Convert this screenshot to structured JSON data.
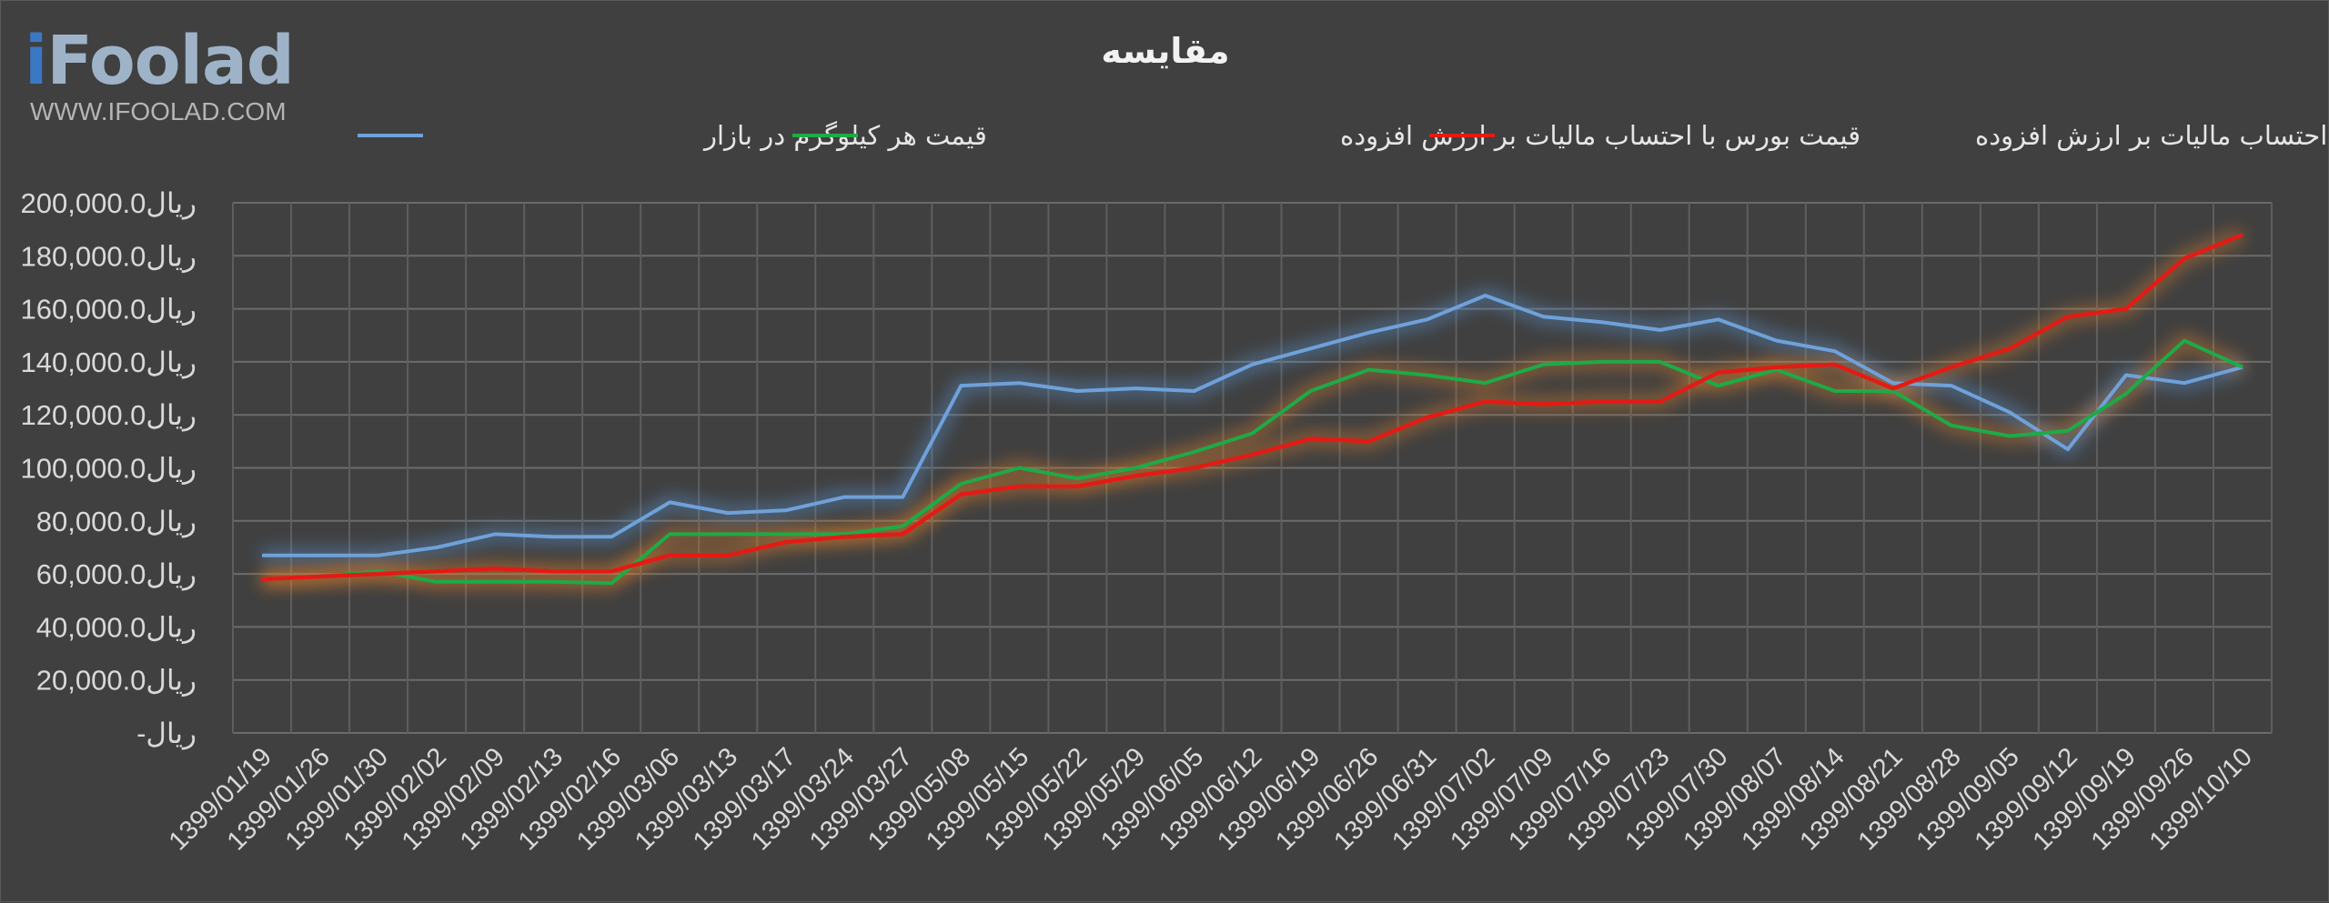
{
  "logo": {
    "name": "iFoolad",
    "url": "WWW.IFOOLAD.COM"
  },
  "chart_data": {
    "type": "line",
    "title": "مقایسه",
    "xlabel": "",
    "ylabel": "",
    "ylim": [
      0,
      200000
    ],
    "yticks": [
      0,
      20000,
      40000,
      60000,
      80000,
      100000,
      120000,
      140000,
      160000,
      180000,
      200000
    ],
    "ytick_labels": [
      "-ریال",
      "20,000.0ریال",
      "40,000.0ریال",
      "60,000.0ریال",
      "80,000.0ریال",
      "100,000.0ریال",
      "120,000.0ریال",
      "140,000.0ریال",
      "160,000.0ریال",
      "180,000.0ریال",
      "200,000.0ریال"
    ],
    "grid": true,
    "legend_position": "top",
    "categories": [
      "1399/01/19",
      "1399/01/26",
      "1399/01/30",
      "1399/02/02",
      "1399/02/09",
      "1399/02/13",
      "1399/02/16",
      "1399/03/06",
      "1399/03/13",
      "1399/03/17",
      "1399/03/24",
      "1399/03/27",
      "1399/05/08",
      "1399/05/15",
      "1399/05/22",
      "1399/05/29",
      "1399/06/05",
      "1399/06/12",
      "1399/06/19",
      "1399/06/26",
      "1399/06/31",
      "1399/07/02",
      "1399/07/09",
      "1399/07/16",
      "1399/07/23",
      "1399/07/30",
      "1399/08/07",
      "1399/08/14",
      "1399/08/21",
      "1399/08/28",
      "1399/09/05",
      "1399/09/12",
      "1399/09/19",
      "1399/09/26",
      "1399/10/10"
    ],
    "series": [
      {
        "name": "قیمت هر کیلوگرم در بازار",
        "color": "#6fa1da",
        "glow": "#5b9be0",
        "values": [
          67000,
          67000,
          67000,
          70000,
          75000,
          74000,
          74000,
          87000,
          83000,
          84000,
          89000,
          89000,
          131000,
          132000,
          129000,
          130000,
          129000,
          139000,
          145000,
          151000,
          156000,
          165000,
          157000,
          155000,
          152000,
          156000,
          148000,
          144000,
          132000,
          131000,
          121000,
          107000,
          135000,
          132000,
          138000
        ]
      },
      {
        "name": "قیمت بورس با احتساب مالیات بر ارزش افزوده",
        "color": "#1dab47",
        "glow": "#e8832a",
        "values": [
          58000,
          59000,
          61000,
          57000,
          57000,
          57000,
          56500,
          75000,
          75000,
          75000,
          75000,
          78000,
          94000,
          100000,
          96000,
          100000,
          106000,
          113000,
          129000,
          137000,
          135000,
          132000,
          139000,
          140000,
          140000,
          131000,
          137000,
          129000,
          129000,
          116000,
          112000,
          114000,
          128000,
          148000,
          138000
        ]
      },
      {
        "name": "قیمت جهانی با احتساب مالیات بر ارزش افزوده",
        "color": "#e41a14",
        "glow": "#e8832a",
        "values": [
          58000,
          59000,
          60000,
          61000,
          62000,
          61000,
          61000,
          67000,
          67000,
          72000,
          74000,
          75000,
          90000,
          93000,
          93000,
          97000,
          100000,
          105000,
          111000,
          110000,
          119000,
          125000,
          124000,
          125000,
          125000,
          136000,
          138000,
          139000,
          130000,
          138000,
          145000,
          157000,
          160000,
          179000,
          188000
        ]
      }
    ]
  }
}
